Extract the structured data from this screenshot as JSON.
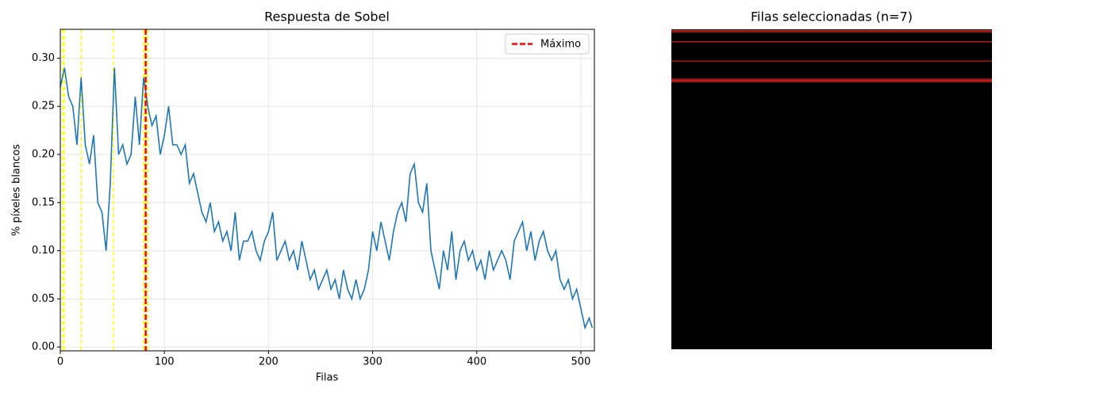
{
  "chart_data": [
    {
      "type": "line",
      "title": "Respuesta de Sobel",
      "xlabel": "Filas",
      "ylabel": "% píxeles blancos",
      "color": "#1f77b4",
      "grid": true,
      "xlim": [
        0,
        513
      ],
      "ylim": [
        -0.004,
        0.33
      ],
      "xticks": [
        0,
        100,
        200,
        300,
        400,
        500
      ],
      "yticks": [
        {
          "value": 0,
          "label": "0.00"
        },
        {
          "value": 0.05,
          "label": "0.05"
        },
        {
          "value": 0.1,
          "label": "0.10"
        },
        {
          "value": 0.15,
          "label": "0.15"
        },
        {
          "value": 0.2,
          "label": "0.20"
        },
        {
          "value": 0.25,
          "label": "0.25"
        },
        {
          "value": 0.3,
          "label": "0.30"
        }
      ],
      "selected_rows": [
        2,
        4,
        20,
        51,
        80,
        82,
        84
      ],
      "selected_color": "#ffff00",
      "max_row": 82,
      "max_color": "#ff0000",
      "legend": "Máximo",
      "legend_position": "upper right",
      "x": [
        0,
        4,
        8,
        12,
        16,
        20,
        24,
        28,
        32,
        36,
        40,
        44,
        48,
        52,
        56,
        60,
        64,
        68,
        72,
        76,
        80,
        84,
        88,
        92,
        96,
        100,
        104,
        108,
        112,
        116,
        120,
        124,
        128,
        132,
        136,
        140,
        144,
        148,
        152,
        156,
        160,
        164,
        168,
        172,
        176,
        180,
        184,
        188,
        192,
        196,
        200,
        204,
        208,
        212,
        216,
        220,
        224,
        228,
        232,
        236,
        240,
        244,
        248,
        252,
        256,
        260,
        264,
        268,
        272,
        276,
        280,
        284,
        288,
        292,
        296,
        300,
        304,
        308,
        312,
        316,
        320,
        324,
        328,
        332,
        336,
        340,
        344,
        348,
        352,
        356,
        360,
        364,
        368,
        372,
        376,
        380,
        384,
        388,
        392,
        396,
        400,
        404,
        408,
        412,
        416,
        420,
        424,
        428,
        432,
        436,
        440,
        444,
        448,
        452,
        456,
        460,
        464,
        468,
        472,
        476,
        480,
        484,
        488,
        492,
        496,
        500,
        504,
        508,
        511
      ],
      "values": [
        0.27,
        0.29,
        0.26,
        0.25,
        0.21,
        0.28,
        0.21,
        0.19,
        0.22,
        0.15,
        0.14,
        0.1,
        0.17,
        0.29,
        0.2,
        0.21,
        0.19,
        0.2,
        0.26,
        0.21,
        0.28,
        0.25,
        0.23,
        0.24,
        0.2,
        0.22,
        0.25,
        0.21,
        0.21,
        0.2,
        0.21,
        0.17,
        0.18,
        0.16,
        0.14,
        0.13,
        0.15,
        0.12,
        0.13,
        0.11,
        0.12,
        0.1,
        0.14,
        0.09,
        0.11,
        0.11,
        0.12,
        0.1,
        0.09,
        0.11,
        0.12,
        0.14,
        0.09,
        0.1,
        0.11,
        0.09,
        0.1,
        0.08,
        0.11,
        0.09,
        0.07,
        0.08,
        0.06,
        0.07,
        0.08,
        0.06,
        0.07,
        0.05,
        0.08,
        0.06,
        0.05,
        0.07,
        0.05,
        0.06,
        0.08,
        0.12,
        0.1,
        0.13,
        0.11,
        0.09,
        0.12,
        0.14,
        0.15,
        0.13,
        0.18,
        0.19,
        0.15,
        0.14,
        0.17,
        0.1,
        0.08,
        0.06,
        0.1,
        0.08,
        0.12,
        0.07,
        0.1,
        0.11,
        0.09,
        0.1,
        0.08,
        0.09,
        0.07,
        0.1,
        0.08,
        0.09,
        0.1,
        0.09,
        0.07,
        0.11,
        0.12,
        0.13,
        0.1,
        0.12,
        0.09,
        0.11,
        0.12,
        0.1,
        0.09,
        0.1,
        0.07,
        0.06,
        0.07,
        0.05,
        0.06,
        0.04,
        0.02,
        0.03,
        0.02
      ]
    },
    {
      "type": "image",
      "title": "Filas seleccionadas (n=7)",
      "line_color": "#d62020"
    }
  ]
}
